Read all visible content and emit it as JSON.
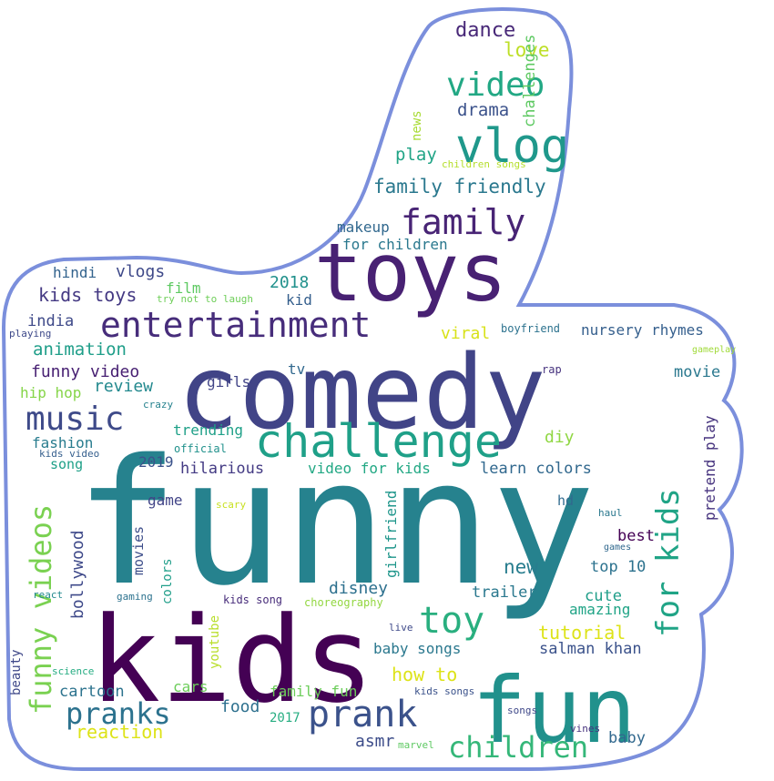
{
  "outline_color": "#7b8fdc",
  "words": [
    {
      "text": "funny",
      "color": "#26828e"
    },
    {
      "text": "comedy",
      "color": "#414487"
    },
    {
      "text": "kids",
      "color": "#440154"
    },
    {
      "text": "toys",
      "color": "#482173"
    },
    {
      "text": "fun",
      "color": "#21918c"
    },
    {
      "text": "challenge",
      "color": "#1fa088"
    },
    {
      "text": "vlog",
      "color": "#1f988b"
    },
    {
      "text": "entertainment",
      "color": "#472d7b"
    },
    {
      "text": "family",
      "color": "#482475"
    },
    {
      "text": "video",
      "color": "#22a884"
    },
    {
      "text": "prank",
      "color": "#3b528b"
    },
    {
      "text": "music",
      "color": "#3e4a89"
    },
    {
      "text": "for kids",
      "color": "#20a486"
    },
    {
      "text": "toy",
      "color": "#29af7f"
    },
    {
      "text": "pranks",
      "color": "#2c728e"
    },
    {
      "text": "children",
      "color": "#35b779"
    },
    {
      "text": "funny videos",
      "color": "#7ad151"
    },
    {
      "text": "family friendly",
      "color": "#2a788e"
    },
    {
      "text": "dance",
      "color": "#482878"
    },
    {
      "text": "love",
      "color": "#bddf26"
    },
    {
      "text": "drama",
      "color": "#3b528b"
    },
    {
      "text": "challenges",
      "color": "#5ec962"
    },
    {
      "text": "news",
      "color": "#a8db34"
    },
    {
      "text": "play",
      "color": "#20a486"
    },
    {
      "text": "children songs",
      "color": "#b5de2b"
    },
    {
      "text": "makeup",
      "color": "#31688e"
    },
    {
      "text": "for children",
      "color": "#2a788e"
    },
    {
      "text": "hindi",
      "color": "#33638d"
    },
    {
      "text": "vlogs",
      "color": "#3e4989"
    },
    {
      "text": "2018",
      "color": "#21918c"
    },
    {
      "text": "kids toys",
      "color": "#443983"
    },
    {
      "text": "film",
      "color": "#5ec962"
    },
    {
      "text": "try not to laugh",
      "color": "#6ece58"
    },
    {
      "text": "kid",
      "color": "#355f8d"
    },
    {
      "text": "playing",
      "color": "#3e4989"
    },
    {
      "text": "india",
      "color": "#3e4989"
    },
    {
      "text": "viral",
      "color": "#d8e219"
    },
    {
      "text": "boyfriend",
      "color": "#2c728e"
    },
    {
      "text": "nursery rhymes",
      "color": "#355f8d"
    },
    {
      "text": "gameplay",
      "color": "#a0da39"
    },
    {
      "text": "animation",
      "color": "#1f9e89"
    },
    {
      "text": "funny video",
      "color": "#482173"
    },
    {
      "text": "tv",
      "color": "#31688e"
    },
    {
      "text": "rap",
      "color": "#46327e"
    },
    {
      "text": "movie",
      "color": "#2a788e"
    },
    {
      "text": "review",
      "color": "#23898e"
    },
    {
      "text": "girls",
      "color": "#414487"
    },
    {
      "text": "hip hop",
      "color": "#86d549"
    },
    {
      "text": "crazy",
      "color": "#26828e"
    },
    {
      "text": "pretend play",
      "color": "#46337e"
    },
    {
      "text": "trending",
      "color": "#1fa088"
    },
    {
      "text": "diy",
      "color": "#90d743"
    },
    {
      "text": "fashion",
      "color": "#287c8e"
    },
    {
      "text": "kids video",
      "color": "#355f8d"
    },
    {
      "text": "official",
      "color": "#21918c"
    },
    {
      "text": "song",
      "color": "#1fa088"
    },
    {
      "text": "2019",
      "color": "#3b528b"
    },
    {
      "text": "hilarious",
      "color": "#443b84"
    },
    {
      "text": "video for kids",
      "color": "#22a884"
    },
    {
      "text": "learn colors",
      "color": "#31688e"
    },
    {
      "text": "game",
      "color": "#414487"
    },
    {
      "text": "scary",
      "color": "#c8e020"
    },
    {
      "text": "girlfriend",
      "color": "#1f968b"
    },
    {
      "text": "hd",
      "color": "#306a8e"
    },
    {
      "text": "haul",
      "color": "#2a788e"
    },
    {
      "text": "bollywood",
      "color": "#3e4989"
    },
    {
      "text": "movies",
      "color": "#3d4e8a"
    },
    {
      "text": "best",
      "color": "#440154"
    },
    {
      "text": "games",
      "color": "#31688e"
    },
    {
      "text": "colors",
      "color": "#1f9e89"
    },
    {
      "text": "new",
      "color": "#287d8e"
    },
    {
      "text": "top 10",
      "color": "#2c728e"
    },
    {
      "text": "disney",
      "color": "#2d708e"
    },
    {
      "text": "react",
      "color": "#23898e"
    },
    {
      "text": "gaming",
      "color": "#2c728e"
    },
    {
      "text": "kids song",
      "color": "#472c7a"
    },
    {
      "text": "choreography",
      "color": "#93d741"
    },
    {
      "text": "trailer",
      "color": "#2a788e"
    },
    {
      "text": "cute",
      "color": "#1f9e89"
    },
    {
      "text": "amazing",
      "color": "#20a486"
    },
    {
      "text": "youtube",
      "color": "#b8de29"
    },
    {
      "text": "live",
      "color": "#3e4989"
    },
    {
      "text": "tutorial",
      "color": "#dde318"
    },
    {
      "text": "beauty",
      "color": "#3f4889"
    },
    {
      "text": "baby songs",
      "color": "#2a788e"
    },
    {
      "text": "salman khan",
      "color": "#3b528b"
    },
    {
      "text": "science",
      "color": "#25ac82"
    },
    {
      "text": "cartoon",
      "color": "#2c738e"
    },
    {
      "text": "cars",
      "color": "#6ccd5a"
    },
    {
      "text": "how to",
      "color": "#dde318"
    },
    {
      "text": "family fun",
      "color": "#6ccd5a"
    },
    {
      "text": "kids songs",
      "color": "#3b528b"
    },
    {
      "text": "food",
      "color": "#2d708e"
    },
    {
      "text": "songs",
      "color": "#3f4889"
    },
    {
      "text": "2017",
      "color": "#26ad81"
    },
    {
      "text": "asmr",
      "color": "#3d4d8a"
    },
    {
      "text": "marvel",
      "color": "#5ec962"
    },
    {
      "text": "vines",
      "color": "#46337e"
    },
    {
      "text": "reaction",
      "color": "#dde318"
    },
    {
      "text": "baby",
      "color": "#31688e"
    }
  ]
}
